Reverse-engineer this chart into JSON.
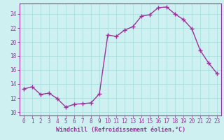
{
  "hours": [
    0,
    1,
    2,
    3,
    4,
    5,
    6,
    7,
    8,
    9,
    10,
    11,
    12,
    13,
    14,
    15,
    16,
    17,
    18,
    19,
    20,
    21,
    22,
    23
  ],
  "temps": [
    13.3,
    13.6,
    12.5,
    12.7,
    11.9,
    10.7,
    11.1,
    11.2,
    11.3,
    12.6,
    21.0,
    20.8,
    21.7,
    22.2,
    23.7,
    23.9,
    24.9,
    25.0,
    24.0,
    23.2,
    21.9,
    18.8,
    17.0,
    15.5
  ],
  "background_color": "#cff0f0",
  "line_color": "#993399",
  "grid_color": "#aadddd",
  "xlabel": "Windchill (Refroidissement éolien,°C)",
  "ylim": [
    9.5,
    25.5
  ],
  "xlim": [
    -0.5,
    23.5
  ],
  "yticks": [
    10,
    12,
    14,
    16,
    18,
    20,
    22,
    24
  ],
  "xticks": [
    0,
    1,
    2,
    3,
    4,
    5,
    6,
    7,
    8,
    9,
    10,
    11,
    12,
    13,
    14,
    15,
    16,
    17,
    18,
    19,
    20,
    21,
    22,
    23
  ],
  "xlabel_fontsize": 6.0,
  "tick_fontsize": 5.5,
  "line_width": 1.0,
  "marker_size": 4.0
}
